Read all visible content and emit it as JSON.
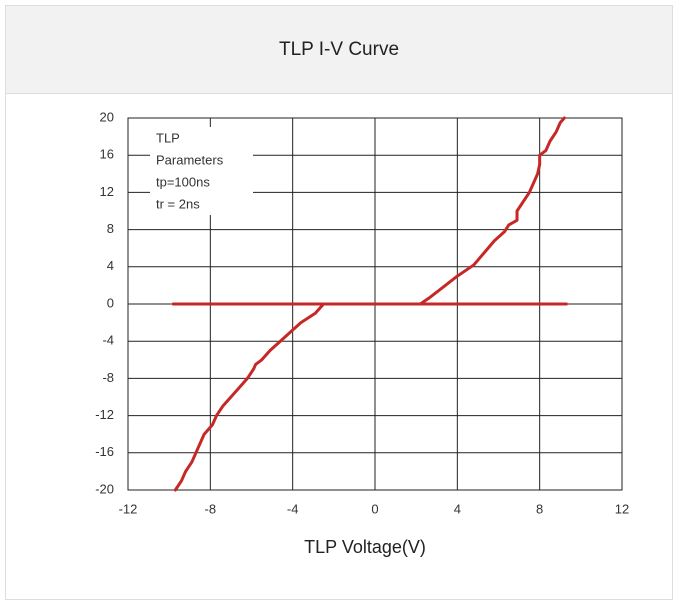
{
  "chart_data": {
    "type": "line",
    "title": "TLP I-V Curve",
    "x_label": "TLP Voltage(V)",
    "annotation": [
      "TLP",
      "Parameters",
      "tp=100ns",
      "tr = 2ns"
    ],
    "series": [
      {
        "color": "#c62828",
        "x": [
          -9.7,
          -9.4,
          -9.2,
          -8.9,
          -8.7,
          -8.5,
          -8.3,
          -7.9,
          -7.7,
          -7.4,
          -7.0,
          -6.6,
          -6.2,
          -5.9,
          -5.8,
          -5.5,
          -5.1,
          -4.6,
          -4.1,
          -3.6,
          -2.9,
          -2.5,
          -9.8,
          9.3,
          2.2,
          2.6,
          3.3,
          4.0,
          4.8,
          5.3,
          5.8,
          6.3,
          6.5,
          6.9,
          6.9,
          7.2,
          7.5,
          7.7,
          7.9,
          8.0,
          8.0,
          8.3,
          8.5,
          8.8,
          9.0,
          9.2
        ],
        "values": [
          -20,
          -19,
          -18,
          -17,
          -16,
          -15,
          -14,
          -13,
          -12,
          -11,
          -10,
          -9,
          -8,
          -7,
          -6.5,
          -6,
          -5,
          -4,
          -3,
          -2,
          -1,
          0,
          0,
          0,
          0,
          0.6,
          1.8,
          3,
          4.2,
          5.5,
          6.8,
          7.8,
          8.5,
          9,
          10,
          11,
          12,
          13,
          14,
          15,
          16,
          16.5,
          17.5,
          18.5,
          19.5,
          20
        ]
      }
    ],
    "xlim": [
      -12,
      12
    ],
    "xticks": [
      -12,
      -8,
      -4,
      0,
      4,
      8,
      12
    ],
    "ylim": [
      -20,
      20
    ],
    "yticks": [
      -20,
      -16,
      -12,
      -8,
      -4,
      0,
      4,
      8,
      12,
      16,
      20
    ],
    "grid": true
  }
}
